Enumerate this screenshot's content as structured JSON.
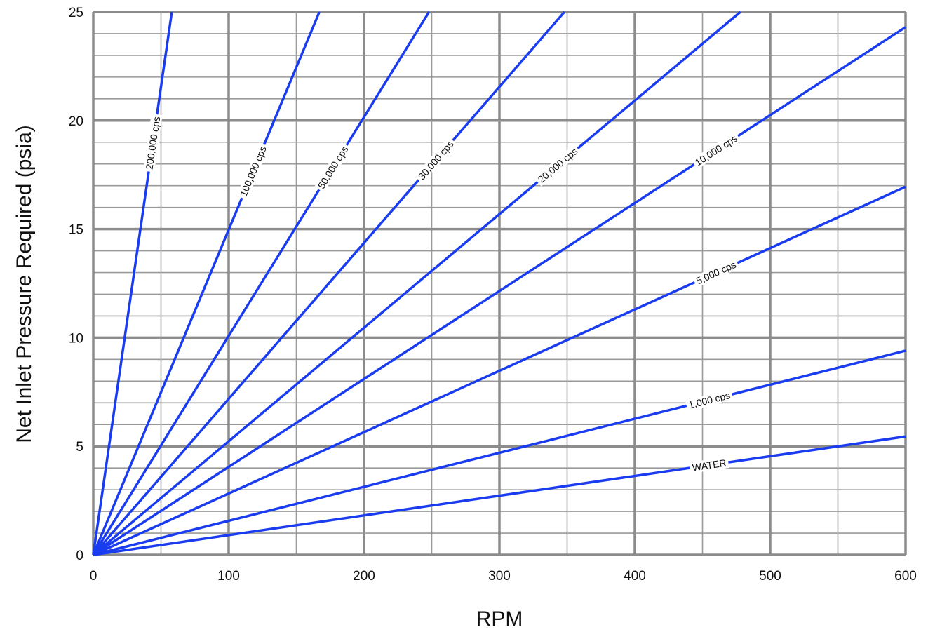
{
  "chart_data": {
    "type": "line",
    "title": "",
    "xlabel": "RPM",
    "ylabel": "Net Inlet Pressure Required (psia)",
    "xlim": [
      0,
      600
    ],
    "ylim": [
      0,
      25
    ],
    "x_ticks": [
      0,
      100,
      200,
      300,
      400,
      500,
      600
    ],
    "y_ticks": [
      0,
      5,
      10,
      15,
      20,
      25
    ],
    "x_minor_step": 50,
    "y_minor_step": 1,
    "grid": true,
    "colors": {
      "series": "#1a3cf0",
      "major_grid": "#8c8c8c",
      "minor_grid": "#9a9a9a"
    },
    "series": [
      {
        "name": "WATER",
        "x": [
          0,
          600
        ],
        "y": [
          0,
          5.45
        ],
        "label_x": 455
      },
      {
        "name": "1,000 cps",
        "x": [
          0,
          600
        ],
        "y": [
          0,
          9.4
        ],
        "label_x": 455
      },
      {
        "name": "5,000 cps",
        "x": [
          0,
          600
        ],
        "y": [
          0,
          16.95
        ],
        "label_x": 460
      },
      {
        "name": "10,000 cps",
        "x": [
          0,
          600
        ],
        "y": [
          0,
          24.3
        ],
        "label_x": 460
      },
      {
        "name": "20,000 cps",
        "x": [
          0,
          478
        ],
        "y": [
          0,
          25
        ],
        "label_x": 343
      },
      {
        "name": "30,000 cps",
        "x": [
          0,
          348
        ],
        "y": [
          0,
          25
        ],
        "label_x": 253
      },
      {
        "name": "50,000 cps",
        "x": [
          0,
          248
        ],
        "y": [
          0,
          25
        ],
        "label_x": 177
      },
      {
        "name": "100,000 cps",
        "x": [
          0,
          167
        ],
        "y": [
          0,
          25
        ],
        "label_x": 118
      },
      {
        "name": "200,000 cps",
        "x": [
          0,
          58
        ],
        "y": [
          0,
          25
        ],
        "label_x": 44
      }
    ]
  }
}
